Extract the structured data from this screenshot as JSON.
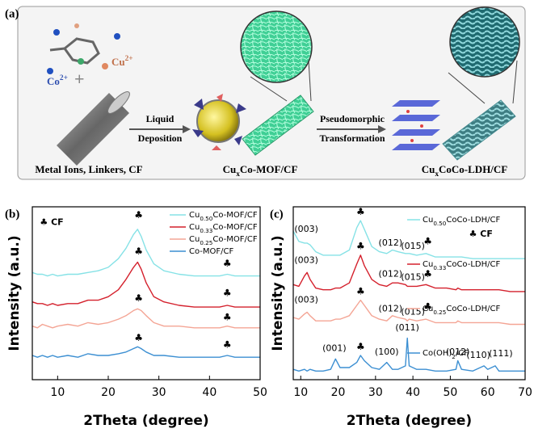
{
  "panel_a": {
    "label": "(a)",
    "cu_ion": "Cu2+",
    "co_ion": "Co2+",
    "plus": "+",
    "step1_top": "Liquid",
    "step1_bottom": "Deposition",
    "step2_top": "Pseudomorphic",
    "step2_bottom": "Transformation",
    "stage1": "Metal Ions, Linkers, CF",
    "stage2": "CuxCo-MOF/CF",
    "stage3": "CuxCoCo-LDH/CF"
  },
  "chart_data": [
    {
      "type": "line",
      "panel_label": "(b)",
      "xlabel": "2Theta (degree)",
      "ylabel": "Intensity (a.u.)",
      "xlim": [
        5,
        50
      ],
      "xticks": [
        10,
        20,
        30,
        40,
        50
      ],
      "ylim": [
        0,
        100
      ],
      "legend": "upper right",
      "x": [
        5,
        6,
        7,
        8,
        9,
        10,
        12,
        14,
        16,
        18,
        20,
        22,
        23.5,
        25,
        25.8,
        26.5,
        27.5,
        29,
        31,
        34,
        37,
        40,
        42,
        43.5,
        45,
        47,
        50
      ],
      "series": [
        {
          "name": "Cu0.50Co-MOF/CF",
          "color": "#86e2e6",
          "values": [
            62,
            61,
            61,
            60,
            61,
            60,
            61,
            61,
            62,
            63,
            65,
            70,
            76,
            84,
            87,
            83,
            75,
            67,
            63,
            61,
            60,
            60,
            60,
            61,
            60,
            60,
            60
          ]
        },
        {
          "name": "Cu0.33Co-MOF/CF",
          "color": "#d4202c",
          "values": [
            45,
            44,
            44,
            43,
            44,
            43,
            44,
            44,
            46,
            46,
            48,
            52,
            58,
            65,
            68,
            64,
            56,
            48,
            45,
            43,
            42,
            42,
            42,
            43,
            42,
            42,
            42
          ]
        },
        {
          "name": "Cu0.25Co-MOF/CF",
          "color": "#f4a595",
          "values": [
            31,
            30,
            32,
            31,
            30,
            31,
            32,
            31,
            33,
            32,
            33,
            35,
            37,
            40,
            41,
            40,
            37,
            33,
            31,
            31,
            30,
            30,
            30,
            31,
            30,
            30,
            30
          ]
        },
        {
          "name": "Co-MOF/CF",
          "color": "#3c8fd2",
          "values": [
            14,
            13,
            14,
            13,
            14,
            13,
            14,
            13,
            15,
            14,
            14,
            15,
            16,
            18,
            19,
            18,
            16,
            14,
            14,
            13,
            13,
            13,
            13,
            14,
            13,
            13,
            13
          ]
        }
      ],
      "annotations": [
        {
          "text": "♣ CF",
          "x": 6.5,
          "y": 91
        },
        {
          "text": "♣",
          "x": 26,
          "y": 95
        },
        {
          "text": "♣",
          "x": 26,
          "y": 74
        },
        {
          "text": "♣",
          "x": 26,
          "y": 47
        },
        {
          "text": "♣",
          "x": 26,
          "y": 24
        },
        {
          "text": "♣",
          "x": 43.5,
          "y": 67
        },
        {
          "text": "♣",
          "x": 43.5,
          "y": 50
        },
        {
          "text": "♣",
          "x": 43.5,
          "y": 36
        },
        {
          "text": "♣",
          "x": 43.5,
          "y": 20
        }
      ]
    },
    {
      "type": "line",
      "panel_label": "(c)",
      "xlabel": "2Theta (degree)",
      "ylabel": "Intensity (a.u.)",
      "xlim": [
        8,
        70
      ],
      "xticks": [
        10,
        20,
        30,
        40,
        50,
        60,
        70
      ],
      "ylim": [
        0,
        100
      ],
      "legend": "beside curves",
      "x": [
        8,
        9.5,
        11,
        11.7,
        12.5,
        14,
        16,
        18,
        19.3,
        20.5,
        23,
        25,
        26,
        27,
        29,
        31,
        33,
        34.5,
        36,
        38,
        38.5,
        39,
        41,
        43.5,
        46,
        49,
        51.5,
        52,
        53,
        56,
        59,
        60,
        62,
        63,
        66,
        70
      ],
      "series": [
        {
          "name": "Cu0.50CoCo-LDH/CF",
          "color": "#86e2e6",
          "values": [
            86,
            80,
            79,
            79,
            78,
            74,
            72,
            72,
            72,
            72,
            75,
            88,
            92,
            87,
            77,
            74,
            73,
            75,
            74,
            73,
            73,
            73,
            72,
            73,
            71,
            71,
            71,
            71,
            71,
            70,
            70,
            70,
            70,
            70,
            70,
            70
          ]
        },
        {
          "name": "Cu0.33CoCo-LDH/CF",
          "color": "#d4202c",
          "values": [
            55,
            54,
            60,
            62,
            58,
            53,
            52,
            52,
            53,
            53,
            56,
            67,
            72,
            66,
            58,
            55,
            54,
            56,
            56,
            55,
            54,
            54,
            54,
            55,
            53,
            53,
            52,
            53,
            52,
            52,
            52,
            52,
            52,
            52,
            51,
            51
          ]
        },
        {
          "name": "Cu0.25CoCo-LDH/CF",
          "color": "#f4a595",
          "values": [
            36,
            35,
            38,
            39,
            37,
            34,
            34,
            34,
            35,
            35,
            37,
            43,
            46,
            43,
            37,
            35,
            34,
            37,
            36,
            35,
            34,
            35,
            34,
            35,
            33,
            33,
            33,
            34,
            33,
            33,
            33,
            33,
            33,
            33,
            32,
            32
          ]
        },
        {
          "name": "Co(OH)2/CF",
          "color": "#3c8fd2",
          "values": [
            6,
            5,
            6,
            5,
            6,
            5,
            5,
            6,
            12,
            7,
            7,
            10,
            14,
            11,
            7,
            6,
            10,
            6,
            6,
            8,
            24,
            8,
            6,
            6,
            5,
            5,
            6,
            11,
            6,
            5,
            8,
            6,
            8,
            5,
            5,
            5
          ]
        }
      ],
      "annotations": [
        {
          "text": "♣ CF",
          "x": 55,
          "y": 84
        },
        {
          "text": "(003)",
          "x": 11.5,
          "y": 87
        },
        {
          "text": "(003)",
          "x": 11.5,
          "y": 69
        },
        {
          "text": "(003)",
          "x": 11.5,
          "y": 46
        },
        {
          "text": "♣",
          "x": 26,
          "y": 97
        },
        {
          "text": "♣",
          "x": 26,
          "y": 77
        },
        {
          "text": "♣",
          "x": 26,
          "y": 51
        },
        {
          "text": "♣",
          "x": 26,
          "y": 19
        },
        {
          "text": "(012)",
          "x": 34,
          "y": 79
        },
        {
          "text": "(015)",
          "x": 40,
          "y": 77
        },
        {
          "text": "(012)",
          "x": 34,
          "y": 61
        },
        {
          "text": "(015)",
          "x": 40,
          "y": 59
        },
        {
          "text": "(012)",
          "x": 34,
          "y": 41
        },
        {
          "text": "(015)",
          "x": 40,
          "y": 39
        },
        {
          "text": "♣",
          "x": 44,
          "y": 80
        },
        {
          "text": "♣",
          "x": 44,
          "y": 61
        },
        {
          "text": "♣",
          "x": 44,
          "y": 42
        },
        {
          "text": "(001)",
          "x": 19,
          "y": 18
        },
        {
          "text": "(100)",
          "x": 33,
          "y": 16
        },
        {
          "text": "(011)",
          "x": 38.5,
          "y": 30
        },
        {
          "text": "(012)",
          "x": 52,
          "y": 16
        },
        {
          "text": "(110)",
          "x": 57.5,
          "y": 14
        },
        {
          "text": "(111)",
          "x": 63.5,
          "y": 15
        }
      ]
    }
  ]
}
